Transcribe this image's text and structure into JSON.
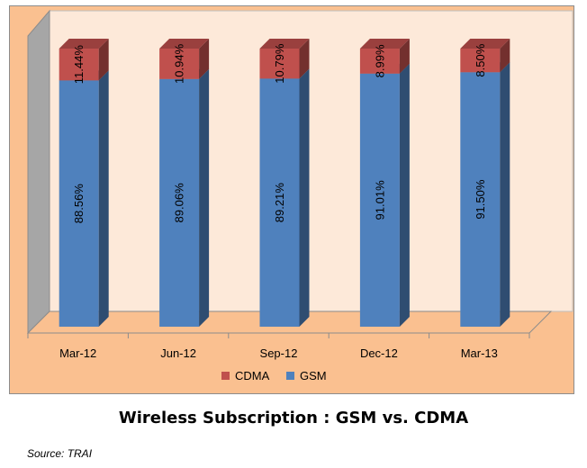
{
  "chart_data": {
    "type": "bar",
    "stacked": true,
    "three_d": true,
    "categories": [
      "Mar-12",
      "Jun-12",
      "Sep-12",
      "Dec-12",
      "Mar-13"
    ],
    "series": [
      {
        "name": "GSM",
        "color": "#4f81bd",
        "values": [
          88.56,
          89.06,
          89.21,
          91.01,
          91.5
        ],
        "labels": [
          "88.56%",
          "89.06%",
          "89.21%",
          "91.01%",
          "91.50%"
        ]
      },
      {
        "name": "CDMA",
        "color": "#c0504d",
        "values": [
          11.44,
          10.94,
          10.79,
          8.99,
          8.5
        ],
        "labels": [
          "11.44%",
          "10.94%",
          "10.79%",
          "8.99%",
          "8.50%"
        ]
      }
    ],
    "ylim": [
      0,
      100
    ],
    "legend_position": "bottom",
    "grid": false
  },
  "title": "Wireless Subscription : GSM vs. CDMA",
  "source": "Source: TRAI"
}
